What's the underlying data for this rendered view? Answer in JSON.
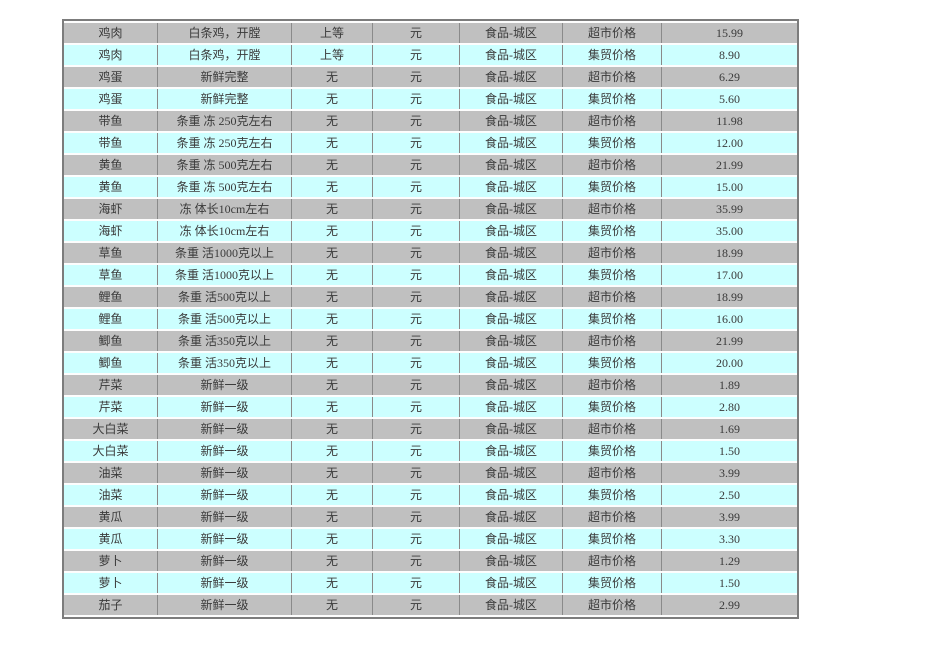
{
  "page": {
    "background_color": "#ffffff"
  },
  "table": {
    "row_color_odd": "#c0c0c0",
    "row_color_even": "#ccffff",
    "grid_line_color": "#8a8a8a",
    "outer_border_color": "#7c7c7c",
    "rows": [
      [
        "鸡肉",
        "白条鸡，开膛",
        "上等",
        "元",
        "食品-城区",
        "超市价格",
        "15.99"
      ],
      [
        "鸡肉",
        "白条鸡，开膛",
        "上等",
        "元",
        "食品-城区",
        "集贸价格",
        "8.90"
      ],
      [
        "鸡蛋",
        "新鲜完整",
        "无",
        "元",
        "食品-城区",
        "超市价格",
        "6.29"
      ],
      [
        "鸡蛋",
        "新鲜完整",
        "无",
        "元",
        "食品-城区",
        "集贸价格",
        "5.60"
      ],
      [
        "带鱼",
        "条重 冻 250克左右",
        "无",
        "元",
        "食品-城区",
        "超市价格",
        "11.98"
      ],
      [
        "带鱼",
        "条重 冻 250克左右",
        "无",
        "元",
        "食品-城区",
        "集贸价格",
        "12.00"
      ],
      [
        "黄鱼",
        "条重 冻 500克左右",
        "无",
        "元",
        "食品-城区",
        "超市价格",
        "21.99"
      ],
      [
        "黄鱼",
        "条重 冻 500克左右",
        "无",
        "元",
        "食品-城区",
        "集贸价格",
        "15.00"
      ],
      [
        "海虾",
        "冻 体长10cm左右",
        "无",
        "元",
        "食品-城区",
        "超市价格",
        "35.99"
      ],
      [
        "海虾",
        "冻 体长10cm左右",
        "无",
        "元",
        "食品-城区",
        "集贸价格",
        "35.00"
      ],
      [
        "草鱼",
        "条重 活1000克以上",
        "无",
        "元",
        "食品-城区",
        "超市价格",
        "18.99"
      ],
      [
        "草鱼",
        "条重 活1000克以上",
        "无",
        "元",
        "食品-城区",
        "集贸价格",
        "17.00"
      ],
      [
        "鲤鱼",
        "条重 活500克以上",
        "无",
        "元",
        "食品-城区",
        "超市价格",
        "18.99"
      ],
      [
        "鲤鱼",
        "条重 活500克以上",
        "无",
        "元",
        "食品-城区",
        "集贸价格",
        "16.00"
      ],
      [
        "鲫鱼",
        "条重 活350克以上",
        "无",
        "元",
        "食品-城区",
        "超市价格",
        "21.99"
      ],
      [
        "鲫鱼",
        "条重 活350克以上",
        "无",
        "元",
        "食品-城区",
        "集贸价格",
        "20.00"
      ],
      [
        "芹菜",
        "新鲜一级",
        "无",
        "元",
        "食品-城区",
        "超市价格",
        "1.89"
      ],
      [
        "芹菜",
        "新鲜一级",
        "无",
        "元",
        "食品-城区",
        "集贸价格",
        "2.80"
      ],
      [
        "大白菜",
        "新鲜一级",
        "无",
        "元",
        "食品-城区",
        "超市价格",
        "1.69"
      ],
      [
        "大白菜",
        "新鲜一级",
        "无",
        "元",
        "食品-城区",
        "集贸价格",
        "1.50"
      ],
      [
        "油菜",
        "新鲜一级",
        "无",
        "元",
        "食品-城区",
        "超市价格",
        "3.99"
      ],
      [
        "油菜",
        "新鲜一级",
        "无",
        "元",
        "食品-城区",
        "集贸价格",
        "2.50"
      ],
      [
        "黄瓜",
        "新鲜一级",
        "无",
        "元",
        "食品-城区",
        "超市价格",
        "3.99"
      ],
      [
        "黄瓜",
        "新鲜一级",
        "无",
        "元",
        "食品-城区",
        "集贸价格",
        "3.30"
      ],
      [
        "萝卜",
        "新鲜一级",
        "无",
        "元",
        "食品-城区",
        "超市价格",
        "1.29"
      ],
      [
        "萝卜",
        "新鲜一级",
        "无",
        "元",
        "食品-城区",
        "集贸价格",
        "1.50"
      ],
      [
        "茄子",
        "新鲜一级",
        "无",
        "元",
        "食品-城区",
        "超市价格",
        "2.99"
      ]
    ]
  }
}
